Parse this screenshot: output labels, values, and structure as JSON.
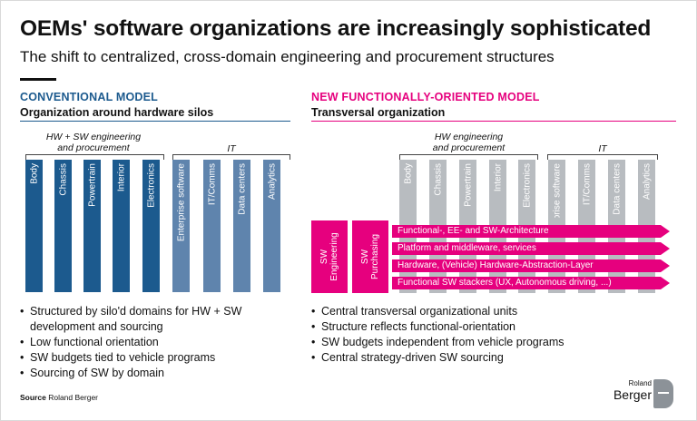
{
  "header": {
    "title": "OEMs' software organizations are increasingly sophisticated",
    "subtitle": "The shift to centralized, cross-domain engineering and procurement structures"
  },
  "conventional": {
    "heading": "CONVENTIONAL MODEL",
    "subheading": "Organization around hardware silos",
    "group_hw_line1": "HW + SW engineering",
    "group_hw_line2": "and procurement",
    "group_it": "IT",
    "hw_bars": [
      "Body",
      "Chassis",
      "Powertrain",
      "Interior",
      "Electronics"
    ],
    "it_bars": [
      "Enterprise software",
      "IT/Comms",
      "Data centers",
      "Analytics"
    ],
    "bullets": [
      "Structured by silo'd domains for HW + SW development and sourcing",
      "Low functional orientation",
      "SW budgets tied to vehicle programs",
      "Sourcing of SW by domain"
    ],
    "colors": {
      "dark": "#1c5a8e",
      "light": "#5f84ad"
    }
  },
  "new_model": {
    "heading": "NEW FUNCTIONALLY-ORIENTED MODEL",
    "subheading": "Transversal organization",
    "group_hw_line1": "HW engineering",
    "group_hw_line2": "and procurement",
    "group_it": "IT",
    "hw_bars": [
      "Body",
      "Chassis",
      "Powertrain",
      "Interior",
      "Electronics"
    ],
    "it_bars": [
      "Enterprise software",
      "IT/Comms",
      "Data centers",
      "Analytics"
    ],
    "units": [
      {
        "line1": "SW",
        "line2": "Engineering"
      },
      {
        "line1": "SW",
        "line2": "Purchasing"
      }
    ],
    "layers": [
      "Functional-, EE- and SW-Architecture",
      "Platform and middleware, services",
      "Hardware, (Vehicle) Hardware-Abstraction-Layer",
      "Functional SW stackers (UX, Autonomous driving, ...)"
    ],
    "bullets": [
      "Central transversal organizational units",
      "Structure reflects functional-orientation",
      "SW budgets independent from vehicle programs",
      "Central strategy-driven SW sourcing"
    ],
    "colors": {
      "accent": "#e6007e",
      "grey": "#b8bcc0"
    }
  },
  "footer": {
    "source_label": "Source",
    "source_text": "Roland Berger",
    "logo_line1": "Roland",
    "logo_line2": "Berger"
  }
}
